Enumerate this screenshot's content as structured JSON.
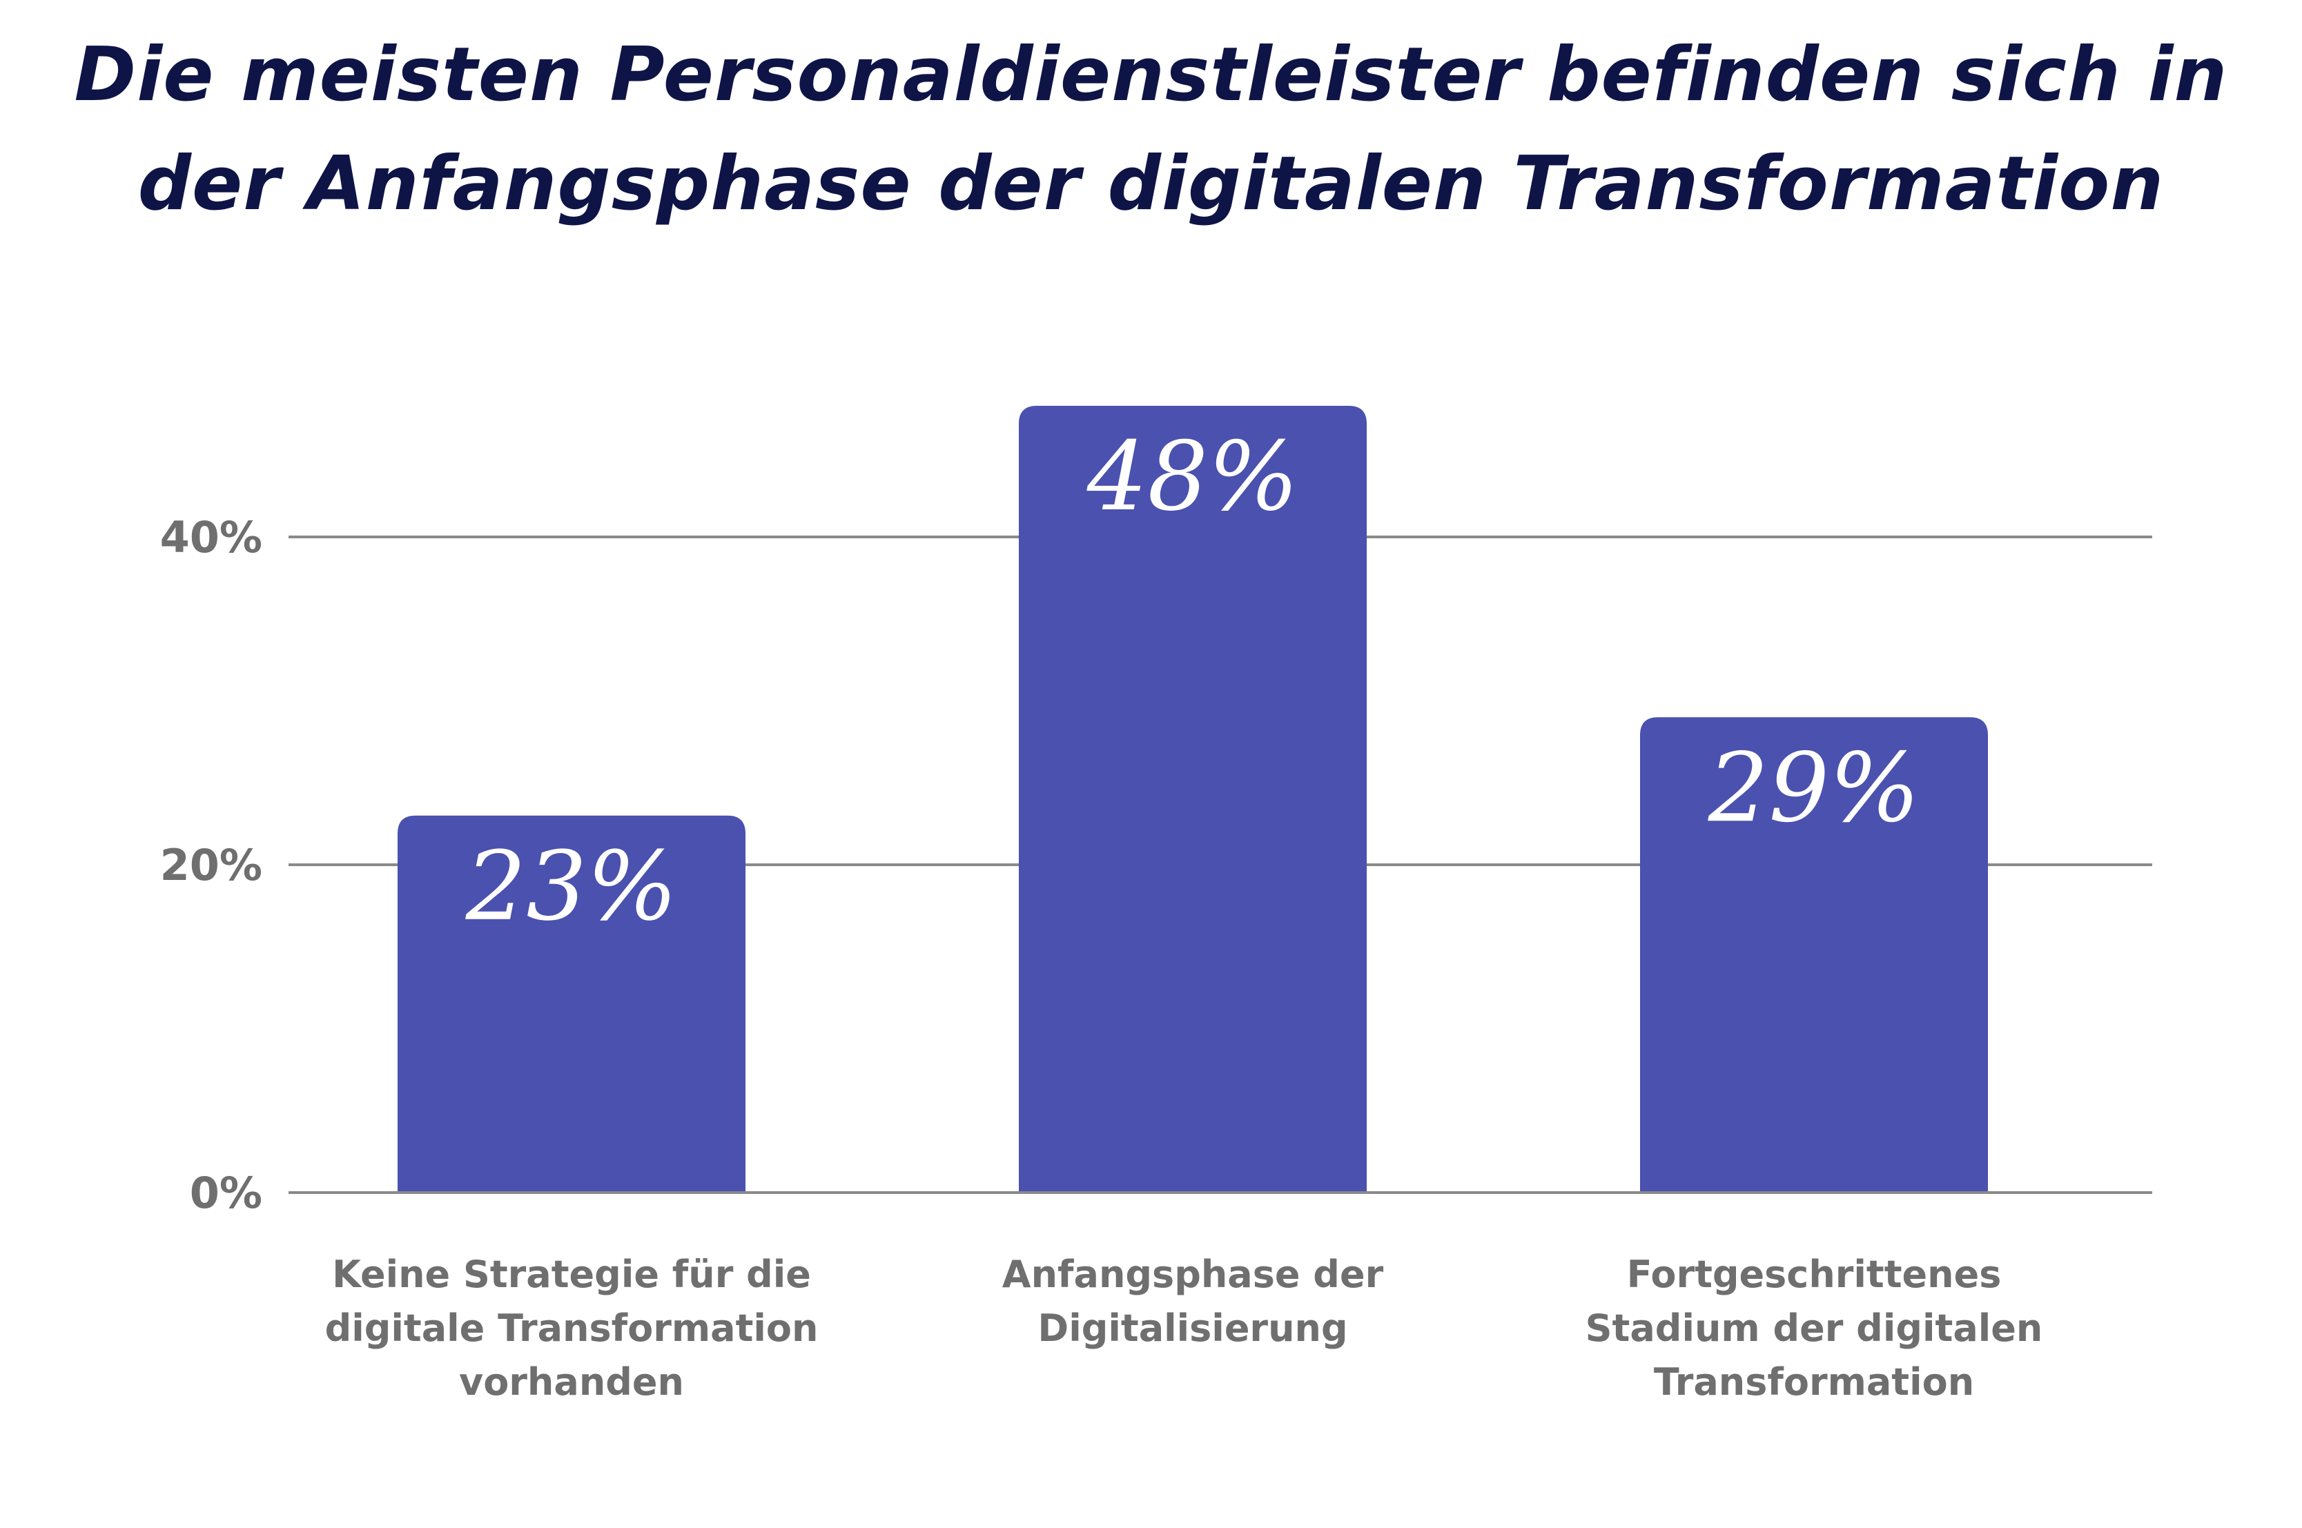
{
  "title_lines": [
    "Die meisten Personaldienstleister befinden sich in",
    "der Anfangsphase der digitalen Transformation"
  ],
  "chart_data": {
    "type": "bar",
    "title": "Die meisten Personaldienstleister befinden sich in der Anfangsphase der digitalen Transformation",
    "categories": [
      [
        "Keine Strategie für die",
        "digitale Transformation",
        "vorhanden"
      ],
      [
        "Anfangsphase der",
        "Digitalisierung"
      ],
      [
        "Fortgeschrittenes",
        "Stadium der digitalen",
        "Transformation"
      ]
    ],
    "values": [
      23,
      48,
      29
    ],
    "data_labels": [
      "23%",
      "48%",
      "29%"
    ],
    "y_ticks": [
      0,
      20,
      40
    ],
    "y_tick_labels": [
      "0%",
      "20%",
      "40%"
    ],
    "ylim": [
      0,
      48
    ],
    "grid": true,
    "bar_color": "#4a51ae",
    "grid_color": "#8a8a8a",
    "title_color": "#0f1447",
    "label_color": "#6f6f6f"
  }
}
